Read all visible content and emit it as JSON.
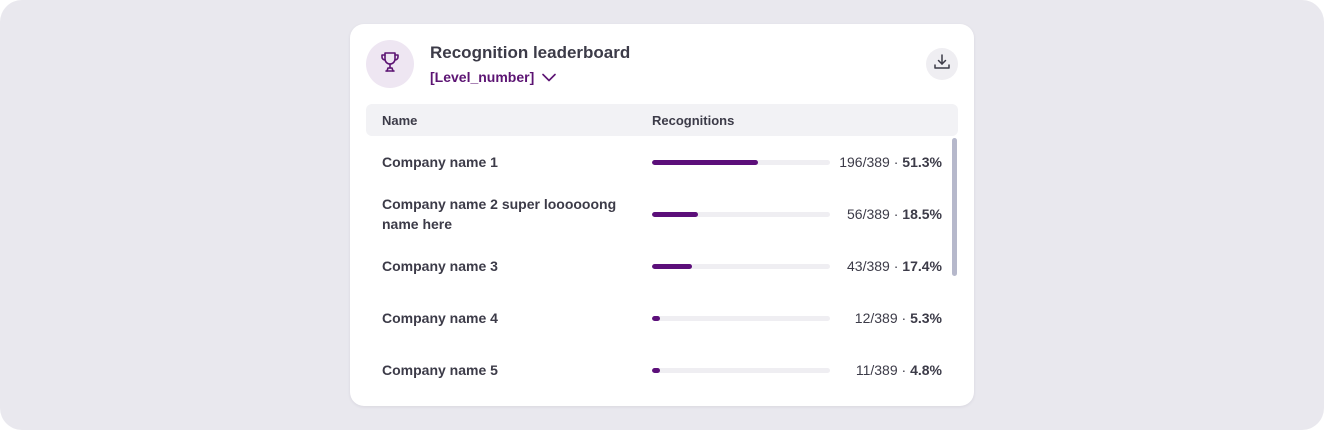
{
  "card": {
    "title": "Recognition leaderboard",
    "level_select": "[Level_number]",
    "trophy_icon": "trophy-icon",
    "download_icon": "download-icon"
  },
  "table": {
    "columns": [
      "Name",
      "Recognitions"
    ],
    "rows": [
      {
        "name": "Company name 1",
        "count": "196/389",
        "percent": "51.3%",
        "fraction": 0.596
      },
      {
        "name": "Company name 2 super loooooong name here",
        "count": "56/389",
        "percent": "18.5%",
        "fraction": 0.26
      },
      {
        "name": "Company name 3",
        "count": "43/389",
        "percent": "17.4%",
        "fraction": 0.225
      },
      {
        "name": "Company name 4",
        "count": "12/389",
        "percent": "5.3%",
        "fraction": 0.045
      },
      {
        "name": "Company name 5",
        "count": "11/389",
        "percent": "4.8%",
        "fraction": 0.045
      }
    ]
  },
  "colors": {
    "accent": "#5c0f7a",
    "background": "#e9e8ee",
    "track": "#efeef2"
  }
}
